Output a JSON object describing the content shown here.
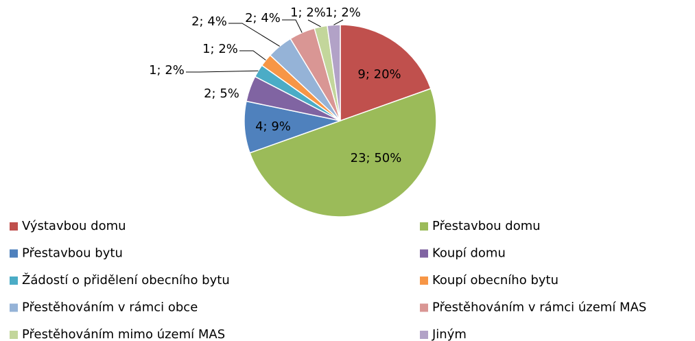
{
  "chart_data": {
    "type": "pie",
    "categories": [
      "Výstavbou domu",
      "Přestavbou domu",
      "Přestavbou bytu",
      "Koupí domu",
      "Žádostí o přidělení obecního bytu",
      "Koupí obecního bytu",
      "Přestěhováním v rámci obce",
      "Přestěhováním v rámci území MAS",
      "Přestěhováním mimo území MAS",
      "Jiným"
    ],
    "values": [
      9,
      23,
      4,
      2,
      1,
      1,
      2,
      2,
      1,
      1
    ],
    "value_labels": [
      "9; 20%",
      "23; 50%",
      "4; 9%",
      "2; 5%",
      "1; 2%",
      "1; 2%",
      "2; 4%",
      "2; 4%",
      "1; 2%",
      "1; 2%"
    ],
    "colors": [
      "#c0504d",
      "#9bbb59",
      "#4f81bd",
      "#8064a2",
      "#4bacc6",
      "#f79646",
      "#95b3d7",
      "#d99694",
      "#c3d69b",
      "#b2a2c7"
    ],
    "legend": "bottom"
  }
}
